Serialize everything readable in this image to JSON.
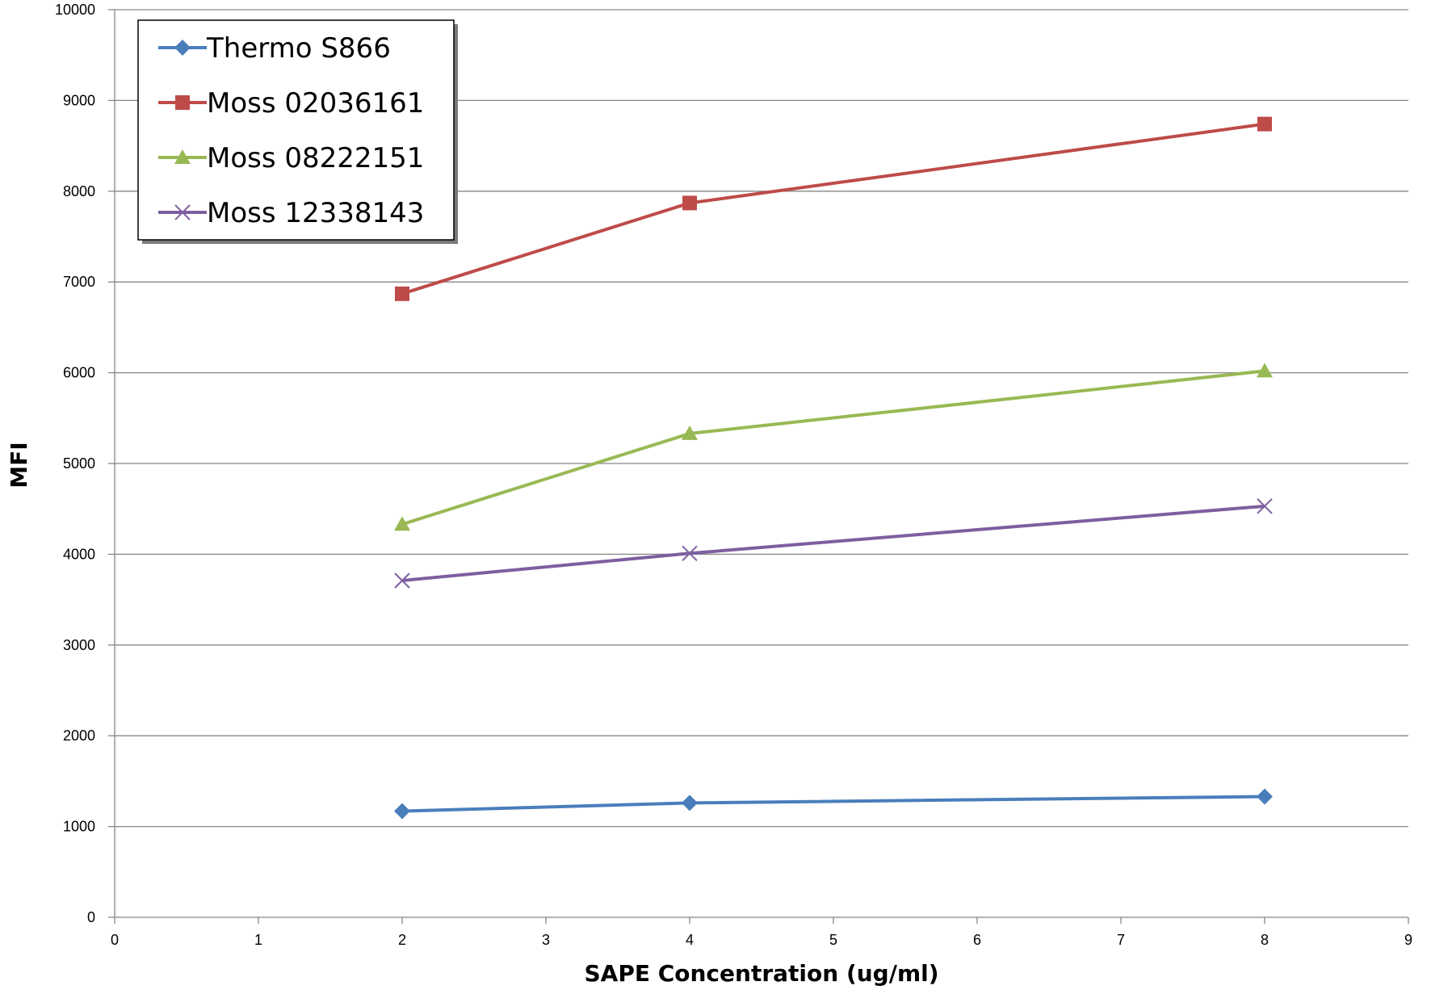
{
  "chart_data": {
    "type": "line",
    "xlabel": "SAPE Concentration (ug/ml)",
    "ylabel": "MFI",
    "xlim": [
      0,
      9
    ],
    "ylim": [
      0,
      10000
    ],
    "x_ticks": [
      "0",
      "1",
      "2",
      "3",
      "4",
      "5",
      "6",
      "7",
      "8",
      "9"
    ],
    "y_ticks": [
      "0",
      "1000",
      "2000",
      "3000",
      "4000",
      "5000",
      "6000",
      "7000",
      "8000",
      "9000",
      "10000"
    ],
    "grid": "horizontal",
    "legend_position": "top-left",
    "series": [
      {
        "name": "Thermo S866",
        "color": "#4a7ebb",
        "marker": "diamond",
        "x": [
          2,
          4,
          8
        ],
        "y": [
          1170,
          1260,
          1330
        ]
      },
      {
        "name": "Moss 02036161",
        "color": "#be4b48",
        "marker": "square",
        "x": [
          2,
          4,
          8
        ],
        "y": [
          6870,
          7870,
          8740
        ]
      },
      {
        "name": "Moss 08222151",
        "color": "#98b954",
        "marker": "triangle",
        "x": [
          2,
          4,
          8
        ],
        "y": [
          4330,
          5330,
          6020
        ]
      },
      {
        "name": "Moss 12338143",
        "color": "#7d5fa0",
        "marker": "x",
        "x": [
          2,
          4,
          8
        ],
        "y": [
          3710,
          4010,
          4530
        ]
      }
    ]
  }
}
